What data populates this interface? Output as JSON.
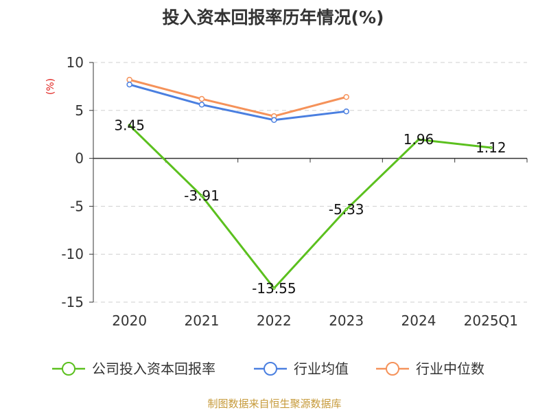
{
  "chart_data": {
    "type": "line",
    "title": "投入资本回报率历年情况(%)",
    "unit_label": "(%)",
    "categories": [
      "2020",
      "2021",
      "2022",
      "2023",
      "2024",
      "2025Q1"
    ],
    "ylim": [
      -15,
      10
    ],
    "yticks": [
      10,
      5,
      0,
      -5,
      -10,
      -15
    ],
    "ytick_labels": [
      "10",
      "5",
      "0",
      "-5",
      "-10",
      "-15"
    ],
    "grid": true,
    "legend_position": "bottom",
    "series": [
      {
        "name": "公司投入资本回报率",
        "color": "#5bc01e",
        "values": [
          3.45,
          -3.91,
          -13.55,
          -5.33,
          1.96,
          1.12
        ],
        "data_labels": [
          "3.45",
          "-3.91",
          "-13.55",
          "-5.33",
          "1.96",
          "1.12"
        ]
      },
      {
        "name": "行业均值",
        "color": "#4a7fe0",
        "values": [
          7.7,
          5.6,
          4.0,
          4.9,
          null,
          null
        ]
      },
      {
        "name": "行业中位数",
        "color": "#f5925a",
        "values": [
          8.2,
          6.2,
          4.4,
          6.4,
          null,
          null
        ]
      }
    ]
  },
  "source": "制图数据来自恒生聚源数据库"
}
